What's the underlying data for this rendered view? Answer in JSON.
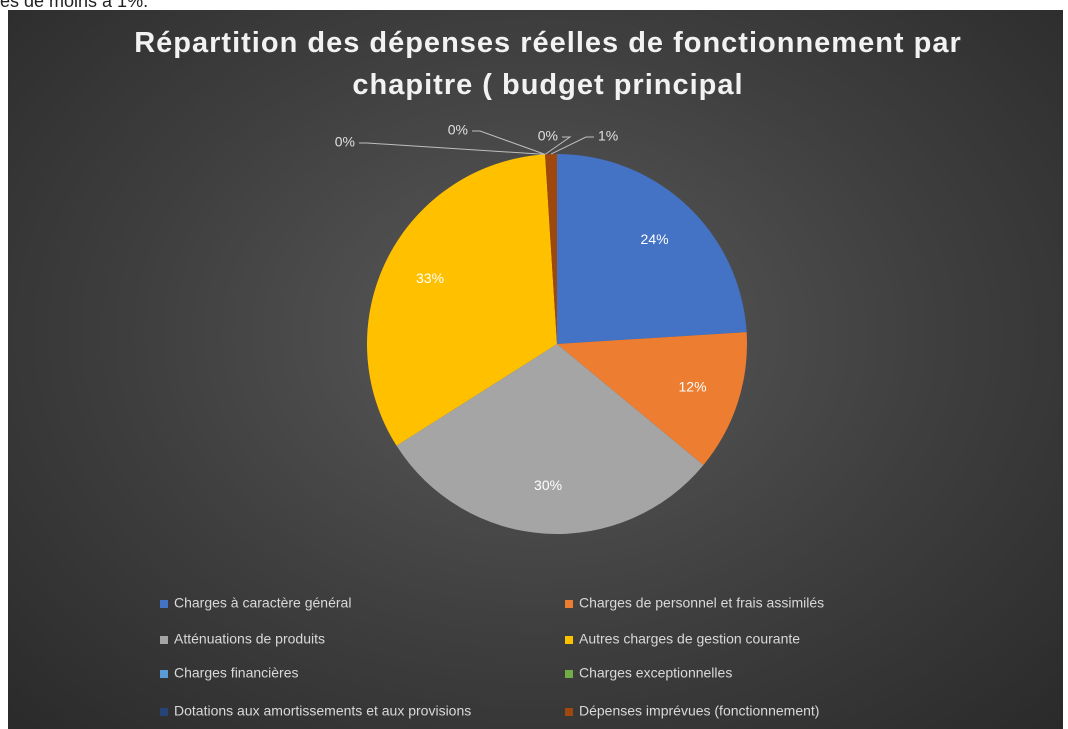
{
  "caption": "es de moins à 1%.",
  "chart_data": {
    "type": "pie",
    "title": "Répartition des dépenses réelles de fonctionnement par chapitre ( budget principal",
    "categories": [
      "Charges à caractère général",
      "Charges de personnel et frais assimilés",
      "Atténuations de produits",
      "Autres charges de gestion courante",
      "Charges financières",
      "Charges exceptionnelles",
      "Dotations aux amortissements et aux provisions",
      "Dépenses imprévues (fonctionnement)"
    ],
    "values": [
      24,
      12,
      30,
      33,
      0,
      0,
      0,
      1
    ],
    "value_labels": [
      "24%",
      "12%",
      "30%",
      "33%",
      "0%",
      "0%",
      "0%",
      "1%"
    ],
    "colors": [
      "#4472c4",
      "#ed7d31",
      "#a5a5a5",
      "#ffc000",
      "#5b9bd5",
      "#70ad47",
      "#264478",
      "#9e480e"
    ],
    "legend": "bottom"
  }
}
